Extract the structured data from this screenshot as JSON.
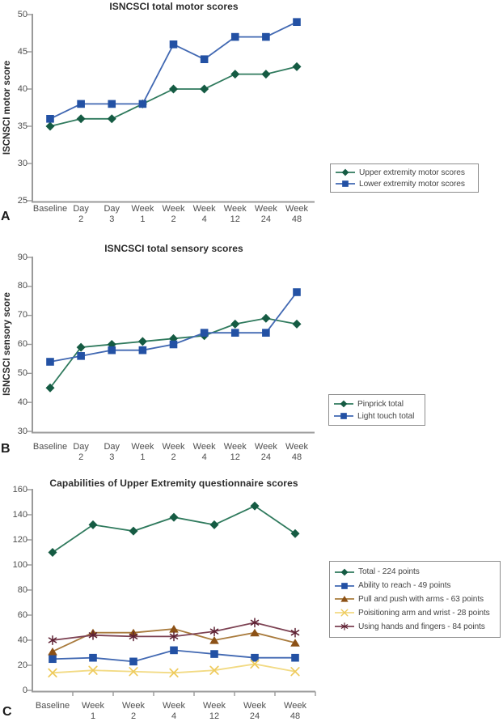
{
  "chart_data": [
    {
      "type": "line",
      "panel_label": "A",
      "title": "ISNCSCI total motor scores",
      "xlabel": "",
      "ylabel": "ISCNSCI motor score",
      "ylim": [
        25,
        50
      ],
      "yticks": [
        25,
        30,
        35,
        40,
        45,
        50
      ],
      "categories": [
        "Baseline",
        "Day 2",
        "Day 3",
        "Week 1",
        "Week 2",
        "Week 4",
        "Week 12",
        "Week 24",
        "Week 48"
      ],
      "grid": false,
      "legend_position": "right-box",
      "series": [
        {
          "name": "Upper extremity motor scores",
          "marker": "diamond",
          "marker_color": "#155B43",
          "line_color": "#2F7A5D",
          "values": [
            35,
            36,
            36,
            38,
            40,
            40,
            42,
            42,
            43
          ]
        },
        {
          "name": "Lower extremity motor scores",
          "marker": "square",
          "marker_color": "#2351A4",
          "line_color": "#4168B2",
          "values": [
            36,
            38,
            38,
            38,
            46,
            44,
            47,
            47,
            49
          ]
        }
      ]
    },
    {
      "type": "line",
      "panel_label": "B",
      "title": "ISNCSCI total sensory scores",
      "xlabel": "",
      "ylabel": "ISNCSCI sensory score",
      "ylim": [
        30,
        90
      ],
      "yticks": [
        30,
        40,
        50,
        60,
        70,
        80,
        90
      ],
      "categories": [
        "Baseline",
        "Day 2",
        "Day 3",
        "Week 1",
        "Week 2",
        "Week 4",
        "Week 12",
        "Week 24",
        "Week 48"
      ],
      "grid": false,
      "legend_position": "right-box",
      "series": [
        {
          "name": "Pinprick total",
          "marker": "diamond",
          "marker_color": "#155B43",
          "line_color": "#2F7A5D",
          "values": [
            45,
            59,
            60,
            61,
            62,
            63,
            67,
            69,
            67
          ]
        },
        {
          "name": "Light touch total",
          "marker": "square",
          "marker_color": "#2351A4",
          "line_color": "#4168B2",
          "values": [
            54,
            56,
            58,
            58,
            60,
            64,
            64,
            64,
            78
          ]
        }
      ]
    },
    {
      "type": "line",
      "panel_label": "C",
      "title": "Capabilities of Upper Extremity questionnaire scores",
      "xlabel": "",
      "ylabel": "",
      "ylim": [
        0,
        160
      ],
      "yticks": [
        0,
        20,
        40,
        60,
        80,
        100,
        120,
        140,
        160
      ],
      "categories": [
        "Baseline",
        "Week 1",
        "Week 2",
        "Week 4",
        "Week 12",
        "Week 24",
        "Week 48"
      ],
      "grid": false,
      "legend_position": "right-box",
      "series": [
        {
          "name": "Total - 224 points",
          "marker": "diamond",
          "marker_color": "#155B43",
          "line_color": "#2F7A5D",
          "values": [
            110,
            132,
            127,
            138,
            132,
            147,
            125
          ]
        },
        {
          "name": "Ability to reach - 49 points",
          "marker": "square",
          "marker_color": "#2351A4",
          "line_color": "#4168B2",
          "values": [
            25,
            26,
            23,
            32,
            29,
            26,
            26
          ]
        },
        {
          "name": "Pull and push with arms - 63 points",
          "marker": "triangle",
          "marker_color": "#8C5116",
          "line_color": "#A97B3D",
          "values": [
            31,
            46,
            46,
            49,
            40,
            46,
            38
          ]
        },
        {
          "name": "Poisitioning arm and wrist - 28 points",
          "marker": "x",
          "marker_color": "#EECA5B",
          "line_color": "#F2DA83",
          "values": [
            14,
            16,
            15,
            14,
            16,
            21,
            15
          ]
        },
        {
          "name": "Using hands and fingers - 84 points",
          "marker": "asterisk",
          "marker_color": "#5D2032",
          "line_color": "#7C4152",
          "values": [
            40,
            44,
            43,
            43,
            47,
            54,
            46
          ]
        }
      ]
    }
  ]
}
